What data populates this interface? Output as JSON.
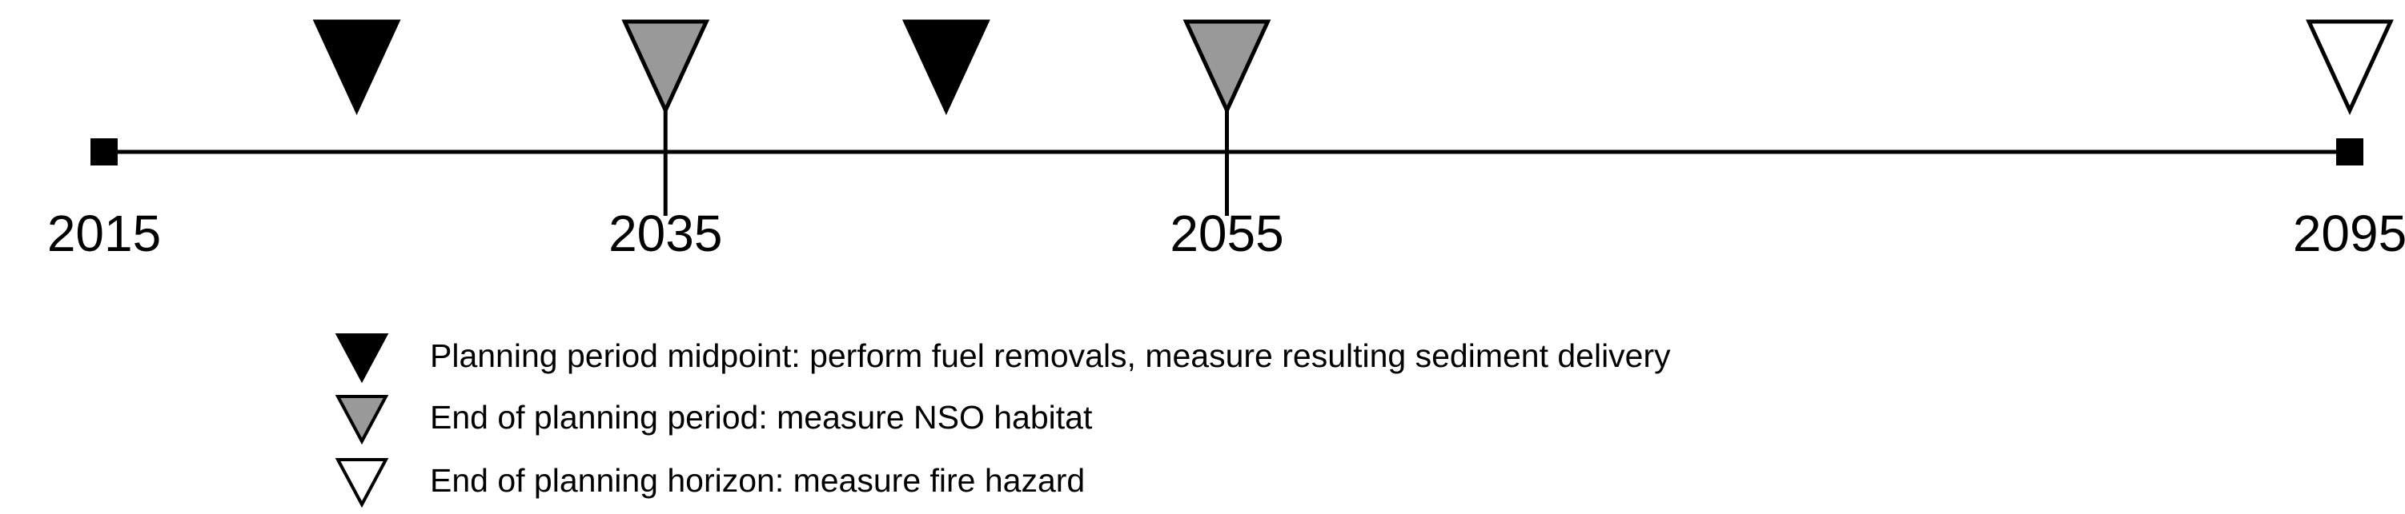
{
  "timeline": {
    "start_year": 2015,
    "end_year": 2095,
    "labeled_years": [
      "2015",
      "2035",
      "2055",
      "2095"
    ],
    "period_boundary_years": [
      2035,
      2055
    ],
    "markers": [
      {
        "year": 2024,
        "kind": "midpoint"
      },
      {
        "year": 2035,
        "kind": "period_end"
      },
      {
        "year": 2045,
        "kind": "midpoint"
      },
      {
        "year": 2055,
        "kind": "period_end"
      },
      {
        "year": 2095,
        "kind": "horizon_end"
      }
    ]
  },
  "marker_colors": {
    "midpoint": "#000000",
    "period_end": "#999999",
    "horizon_end": "#ffffff"
  },
  "legend": [
    {
      "kind": "midpoint",
      "label": "Planning period midpoint: perform fuel removals, measure resulting sediment delivery"
    },
    {
      "kind": "period_end",
      "label": "End of planning period: measure NSO habitat"
    },
    {
      "kind": "horizon_end",
      "label": "End of planning horizon: measure fire hazard"
    }
  ]
}
